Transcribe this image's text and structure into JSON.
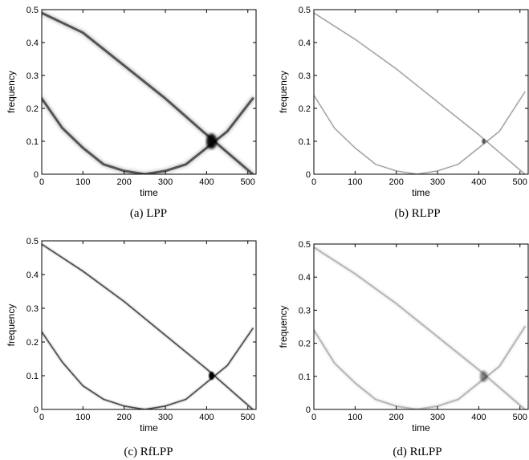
{
  "chart_data": [
    {
      "type": "heatmap",
      "caption": "(a) LPP",
      "xlabel": "time",
      "ylabel": "frequency",
      "xlim": [
        0,
        520
      ],
      "ylim": [
        0,
        0.5
      ],
      "xticks": [
        "0",
        "100",
        "200",
        "300",
        "400",
        "500"
      ],
      "yticks": [
        "0",
        "0.1",
        "0.2",
        "0.3",
        "0.4",
        "0.5"
      ],
      "ridges": [
        {
          "x": [
            0,
            100,
            200,
            300,
            400,
            512
          ],
          "y": [
            0.49,
            0.43,
            0.33,
            0.23,
            0.12,
            0.0
          ]
        },
        {
          "x": [
            0,
            50,
            100,
            150,
            200,
            250,
            300,
            350,
            400,
            450,
            512
          ],
          "y": [
            0.23,
            0.14,
            0.08,
            0.03,
            0.01,
            0.0,
            0.01,
            0.03,
            0.08,
            0.13,
            0.23
          ]
        }
      ],
      "intensity": 0.8,
      "width": 3.0
    },
    {
      "type": "heatmap",
      "caption": "(b) RLPP",
      "xlabel": "time",
      "ylabel": "frequency",
      "xlim": [
        0,
        520
      ],
      "ylim": [
        0,
        0.5
      ],
      "xticks": [
        "0",
        "100",
        "200",
        "300",
        "400",
        "500"
      ],
      "yticks": [
        "0",
        "0.1",
        "0.2",
        "0.3",
        "0.4",
        "0.5"
      ],
      "ridges": [
        {
          "x": [
            0,
            100,
            200,
            300,
            400,
            512
          ],
          "y": [
            0.49,
            0.41,
            0.32,
            0.22,
            0.12,
            0.0
          ]
        },
        {
          "x": [
            0,
            50,
            100,
            150,
            200,
            250,
            300,
            350,
            400,
            450,
            512
          ],
          "y": [
            0.24,
            0.14,
            0.08,
            0.03,
            0.01,
            0.0,
            0.01,
            0.03,
            0.08,
            0.13,
            0.25
          ]
        }
      ],
      "intensity": 0.5,
      "width": 1.0
    },
    {
      "type": "heatmap",
      "caption": "(c) RfLPP",
      "xlabel": "time",
      "ylabel": "frequency",
      "xlim": [
        0,
        520
      ],
      "ylim": [
        0,
        0.5
      ],
      "xticks": [
        "0",
        "100",
        "200",
        "300",
        "400",
        "500"
      ],
      "yticks": [
        "0",
        "0.1",
        "0.2",
        "0.3",
        "0.4",
        "0.5"
      ],
      "ridges": [
        {
          "x": [
            0,
            100,
            200,
            300,
            400,
            512
          ],
          "y": [
            0.49,
            0.41,
            0.32,
            0.22,
            0.12,
            0.0
          ]
        },
        {
          "x": [
            0,
            50,
            100,
            150,
            200,
            250,
            300,
            350,
            400,
            450,
            512
          ],
          "y": [
            0.23,
            0.14,
            0.07,
            0.03,
            0.01,
            0.0,
            0.01,
            0.03,
            0.08,
            0.13,
            0.24
          ]
        }
      ],
      "intensity": 0.85,
      "width": 1.6
    },
    {
      "type": "heatmap",
      "caption": "(d) RtLPP",
      "xlabel": "time",
      "ylabel": "frequency",
      "xlim": [
        0,
        520
      ],
      "ylim": [
        0,
        0.5
      ],
      "xticks": [
        "0",
        "100",
        "200",
        "300",
        "400",
        "500"
      ],
      "yticks": [
        "0",
        "0.1",
        "0.2",
        "0.3",
        "0.4",
        "0.5"
      ],
      "ridges": [
        {
          "x": [
            0,
            100,
            200,
            300,
            400,
            512
          ],
          "y": [
            0.49,
            0.41,
            0.32,
            0.22,
            0.12,
            0.0
          ]
        },
        {
          "x": [
            0,
            50,
            100,
            150,
            200,
            250,
            300,
            350,
            400,
            450,
            512
          ],
          "y": [
            0.24,
            0.14,
            0.08,
            0.03,
            0.01,
            0.0,
            0.01,
            0.03,
            0.08,
            0.13,
            0.25
          ]
        }
      ],
      "intensity": 0.3,
      "width": 2.2
    }
  ],
  "colors": {
    "ridge": "#000000",
    "frame": "#000000",
    "background": "#ffffff"
  }
}
